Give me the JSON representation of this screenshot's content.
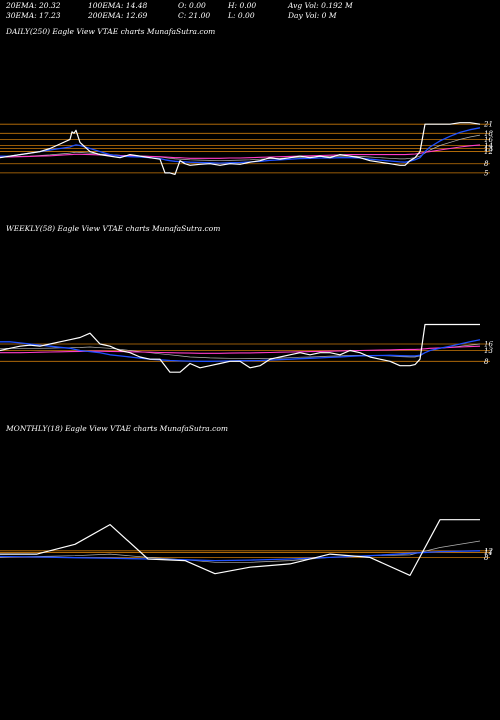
{
  "header": {
    "row1": [
      "20EMA: 20.32",
      "100EMA: 14.48",
      "O: 0.00",
      "H: 0.00",
      "Avg Vol: 0.192  M"
    ],
    "row2": [
      "30EMA: 17.23",
      "200EMA: 12.69",
      "C: 21.00",
      "L: 0.00",
      "Day Vol: 0  M"
    ]
  },
  "colors": {
    "price": "#ffffff",
    "ema_fast": "#1e50ff",
    "ema_pink": "#ff3cc8",
    "orange_lines": "#c8780a",
    "grey": "#b4b4b4"
  },
  "chart_data": [
    {
      "type": "line",
      "title": "DAILY(250) Eagle   View  VTAE charts MunafaSutra.com",
      "y_ticks": [
        {
          "label": "21",
          "value": 21
        },
        {
          "label": "18",
          "value": 18
        },
        {
          "label": "16",
          "value": 16
        },
        {
          "label": "14",
          "value": 14
        },
        {
          "label": "13",
          "value": 13
        },
        {
          "label": "12",
          "value": 12
        },
        {
          "label": "8",
          "value": 8
        },
        {
          "label": "5",
          "value": 5
        }
      ],
      "ylim": [
        2,
        25
      ],
      "x": [
        0,
        10,
        20,
        30,
        40,
        50,
        60,
        70,
        72,
        74,
        76,
        80,
        90,
        100,
        110,
        120,
        130,
        140,
        150,
        160,
        165,
        170,
        175,
        180,
        185,
        190,
        200,
        210,
        220,
        230,
        240,
        250,
        260,
        270,
        280,
        290,
        300,
        310,
        320,
        330,
        340,
        350,
        360,
        370,
        380,
        390,
        400,
        405,
        410,
        415,
        420,
        425,
        430,
        440,
        450,
        460,
        470,
        480
      ],
      "series": [
        {
          "name": "price",
          "values": [
            10,
            10.5,
            11,
            11.5,
            12,
            13,
            14.5,
            16,
            18.5,
            18,
            19,
            15,
            12,
            11,
            10.5,
            10,
            11,
            10.5,
            10,
            9.5,
            5,
            5,
            4.5,
            9,
            8,
            7.5,
            7.8,
            8,
            7.5,
            8,
            7.8,
            8.5,
            9,
            10,
            9.5,
            10,
            10.5,
            10,
            10.5,
            10,
            11,
            10.5,
            10,
            9,
            8.5,
            8,
            7.5,
            7.5,
            9,
            10,
            12,
            21,
            21,
            21,
            21,
            21.5,
            21.5,
            21
          ]
        },
        {
          "name": "ema_fast",
          "values": [
            10.5,
            10.5,
            11,
            11.5,
            12,
            12.5,
            13,
            13.5,
            13.8,
            14,
            14.2,
            14,
            13,
            12,
            11,
            10.5,
            10.3,
            10.2,
            10,
            9.7,
            9.3,
            9,
            8.8,
            8.7,
            8.6,
            8.5,
            8.4,
            8.3,
            8.2,
            8.3,
            8.4,
            8.6,
            8.8,
            9.1,
            9.3,
            9.5,
            9.7,
            9.8,
            9.9,
            9.9,
            10,
            10,
            9.9,
            9.5,
            9.2,
            8.9,
            8.6,
            8.5,
            8.8,
            9.3,
            10,
            12,
            13.5,
            15.5,
            17,
            18.3,
            19.2,
            19.8
          ]
        },
        {
          "name": "ema_pink",
          "values": [
            10.2,
            10.2,
            10.3,
            10.4,
            10.5,
            10.6,
            10.8,
            11,
            11,
            11.1,
            11.1,
            11.1,
            11,
            10.9,
            10.8,
            10.7,
            10.6,
            10.5,
            10.4,
            10.3,
            10.2,
            10.1,
            10,
            10,
            9.9,
            9.8,
            9.8,
            9.8,
            9.8,
            9.9,
            9.9,
            10,
            10.1,
            10.2,
            10.3,
            10.4,
            10.5,
            10.6,
            10.7,
            10.8,
            10.9,
            11,
            11,
            11,
            11,
            11,
            11,
            11,
            11.1,
            11.2,
            11.4,
            11.8,
            12,
            12.5,
            13,
            13.5,
            13.9,
            14.2
          ]
        },
        {
          "name": "ema_grey",
          "values": [
            10.3,
            10.3,
            10.4,
            10.5,
            10.7,
            10.9,
            11.2,
            11.5,
            11.6,
            11.7,
            11.8,
            11.7,
            11.5,
            11.2,
            11,
            10.8,
            10.7,
            10.6,
            10.4,
            10.2,
            10,
            9.8,
            9.6,
            9.5,
            9.4,
            9.3,
            9.2,
            9.1,
            9,
            9.1,
            9.2,
            9.3,
            9.5,
            9.7,
            9.8,
            10,
            10.1,
            10.2,
            10.3,
            10.4,
            10.5,
            10.5,
            10.4,
            10.2,
            10,
            9.8,
            9.6,
            9.6,
            9.8,
            10,
            10.5,
            11.5,
            12.5,
            14,
            15,
            16,
            16.8,
            17.4
          ]
        }
      ],
      "hlines": [
        21,
        18,
        16,
        14,
        13,
        12,
        8,
        5
      ]
    },
    {
      "type": "line",
      "title": "WEEKLY(58) Eagle   View  VTAE charts MunafaSutra.com",
      "y_ticks": [
        {
          "label": "16",
          "value": 16
        },
        {
          "label": "13",
          "value": 13
        },
        {
          "label": "8",
          "value": 8
        }
      ],
      "ylim": [
        -2,
        28
      ],
      "x": [
        0,
        10,
        20,
        30,
        40,
        50,
        60,
        70,
        80,
        90,
        100,
        110,
        120,
        130,
        140,
        150,
        160,
        170,
        180,
        190,
        200,
        210,
        220,
        230,
        240,
        250,
        260,
        270,
        280,
        290,
        300,
        310,
        320,
        330,
        340,
        350,
        360,
        370,
        380,
        390,
        400,
        410,
        415,
        420,
        425,
        430,
        440,
        450,
        460,
        470,
        480
      ],
      "series": [
        {
          "name": "price",
          "values": [
            13,
            14,
            15,
            15.5,
            15,
            16,
            17,
            18,
            19,
            21,
            16,
            15,
            13,
            12,
            10,
            9,
            9,
            3,
            3,
            7,
            5,
            6,
            7,
            8,
            8,
            5,
            6,
            9,
            10,
            11,
            12,
            11,
            12,
            12,
            11,
            13,
            12,
            10,
            9,
            8,
            6,
            6,
            6.5,
            9,
            25,
            25,
            25,
            25,
            25,
            25,
            25
          ]
        },
        {
          "name": "ema_fast",
          "values": [
            17,
            17,
            16.5,
            16,
            15.5,
            15,
            14.5,
            14,
            13,
            12.5,
            12,
            11,
            10.5,
            10,
            9.5,
            9,
            8.7,
            8.4,
            8.2,
            8.1,
            8,
            8,
            8.1,
            8.2,
            8.3,
            8.3,
            8.4,
            8.6,
            8.8,
            9,
            9.2,
            9.4,
            9.6,
            9.8,
            10,
            10.3,
            10.5,
            10.6,
            10.7,
            10.8,
            10.6,
            10.5,
            10.5,
            10.8,
            12,
            13,
            14,
            15,
            16,
            17,
            18
          ]
        },
        {
          "name": "ema_pink",
          "values": [
            12,
            12,
            12,
            12.1,
            12.2,
            12.3,
            12.4,
            12.5,
            12.6,
            12.7,
            12.7,
            12.6,
            12.5,
            12.4,
            12.3,
            12.2,
            12.1,
            12,
            11.9,
            11.8,
            11.7,
            11.7,
            11.7,
            11.8,
            11.9,
            11.9,
            12,
            12.1,
            12.2,
            12.3,
            12.4,
            12.5,
            12.6,
            12.7,
            12.8,
            12.9,
            13,
            13.1,
            13.2,
            13.3,
            13.4,
            13.5,
            13.5,
            13.6,
            13.8,
            14,
            14.2,
            14.4,
            14.6,
            14.8,
            15
          ]
        },
        {
          "name": "ema_grey",
          "values": [
            14,
            14,
            14,
            14,
            14,
            14.1,
            14.2,
            14.3,
            14.4,
            14.6,
            14.3,
            14,
            13.5,
            13,
            12.5,
            12,
            11.5,
            11,
            10.5,
            10,
            9.8,
            9.6,
            9.5,
            9.4,
            9.4,
            9.3,
            9.3,
            9.4,
            9.5,
            9.7,
            9.9,
            10,
            10.2,
            10.4,
            10.5,
            10.7,
            10.8,
            10.8,
            10.7,
            10.5,
            10.2,
            10,
            10,
            10.5,
            12,
            13,
            14,
            14.5,
            15,
            15.5,
            16
          ]
        }
      ],
      "hlines": [
        16,
        13,
        8
      ]
    },
    {
      "type": "line",
      "title": "MONTHLY(18) Eagle   View  VTAE charts MunafaSutra.com",
      "y_ticks": [
        {
          "label": "12",
          "value": 12
        },
        {
          "label": "11",
          "value": 11
        },
        {
          "label": "8",
          "value": 8
        }
      ],
      "ylim": [
        -15,
        40
      ],
      "x": [
        0,
        37,
        75,
        110,
        148,
        185,
        215,
        250,
        290,
        330,
        370,
        410,
        440,
        480
      ],
      "series": [
        {
          "name": "price",
          "values": [
            10,
            10,
            16,
            28,
            7,
            6,
            -2,
            2,
            4,
            10,
            8,
            -3,
            31,
            31
          ]
        },
        {
          "name": "ema_fast",
          "values": [
            8.5,
            8.2,
            7.8,
            7.5,
            7,
            6.5,
            6,
            6.3,
            7,
            8,
            9,
            10.5,
            11.5,
            12
          ]
        },
        {
          "name": "ema_grey",
          "values": [
            8,
            8.5,
            9,
            10,
            8,
            6.5,
            5,
            5,
            6,
            8,
            9,
            9.5,
            14,
            18
          ]
        }
      ],
      "hlines": [
        12,
        11,
        8
      ]
    }
  ]
}
